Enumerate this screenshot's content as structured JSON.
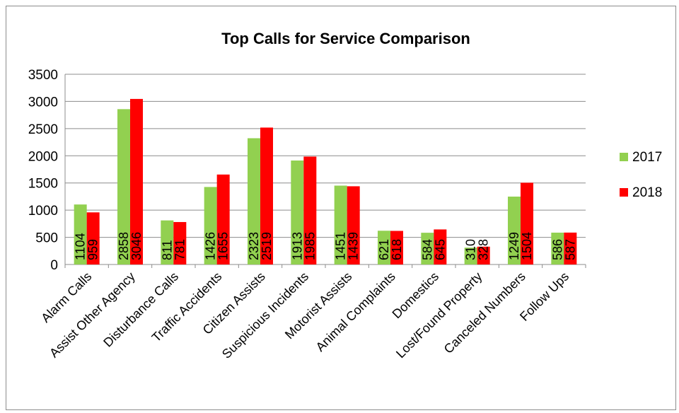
{
  "chart_data": {
    "type": "bar",
    "title": "Top Calls for Service Comparison",
    "xlabel": "",
    "ylabel": "",
    "ylim": [
      0,
      3500
    ],
    "yticks": [
      0,
      500,
      1000,
      1500,
      2000,
      2500,
      3000,
      3500
    ],
    "grid": true,
    "legend_position": "right",
    "categories": [
      "Alarm Calls",
      "Assist Other Agency",
      "Disturbance Calls",
      "Traffic Accidents",
      "Citizen Assists",
      "Suspicious Incidents",
      "Motorist Assists",
      "Animal Complaints",
      "Domestics",
      "Lost/Found Property",
      "Canceled Numbers",
      "Follow Ups"
    ],
    "series": [
      {
        "name": "2017",
        "color": "#92d050",
        "values": [
          1104,
          2858,
          811,
          1426,
          2323,
          1913,
          1451,
          621,
          584,
          310,
          1249,
          586
        ]
      },
      {
        "name": "2018",
        "color": "#ff0000",
        "values": [
          959,
          3046,
          781,
          1655,
          2519,
          1985,
          1439,
          618,
          645,
          328,
          1504,
          587
        ]
      }
    ]
  }
}
